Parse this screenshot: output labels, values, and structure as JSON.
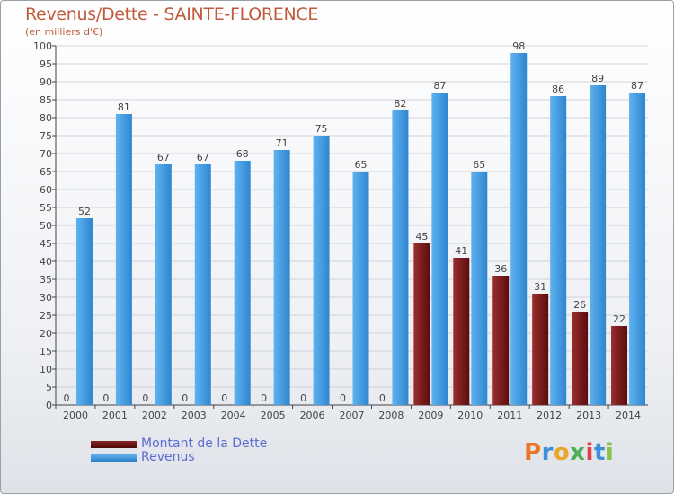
{
  "title": "Revenus/Dette - SAINTE-FLORENCE",
  "subtitle": "(en milliers d'€)",
  "logo_text": "Proxiti",
  "legend": [
    {
      "label": "Montant de la Dette",
      "color": "#7a1a1a"
    },
    {
      "label": "Revenus",
      "color": "#3f9ae0"
    }
  ],
  "colors": {
    "dette": "#7a1a1a",
    "revenus": "#3f9ae0",
    "axis": "#444444",
    "grid": "#cfd3da",
    "value_label": "#444444"
  },
  "chart_data": {
    "type": "bar",
    "title": "Revenus/Dette - SAINTE-FLORENCE",
    "subtitle": "(en milliers d'€)",
    "categories": [
      "2000",
      "2001",
      "2002",
      "2003",
      "2004",
      "2005",
      "2006",
      "2007",
      "2008",
      "2009",
      "2010",
      "2011",
      "2012",
      "2013",
      "2014"
    ],
    "series": [
      {
        "name": "Montant de la Dette",
        "values": [
          0,
          0,
          0,
          0,
          0,
          0,
          0,
          0,
          0,
          45,
          41,
          36,
          31,
          26,
          22
        ]
      },
      {
        "name": "Revenus",
        "values": [
          52,
          81,
          67,
          67,
          68,
          71,
          75,
          65,
          82,
          87,
          65,
          98,
          86,
          89,
          87
        ]
      }
    ],
    "ylim": [
      0,
      100
    ],
    "yticks": [
      0,
      5,
      10,
      15,
      20,
      25,
      30,
      35,
      40,
      45,
      50,
      55,
      60,
      65,
      70,
      75,
      80,
      85,
      90,
      95,
      100
    ],
    "grid": true,
    "legend_position": "bottom-left"
  }
}
